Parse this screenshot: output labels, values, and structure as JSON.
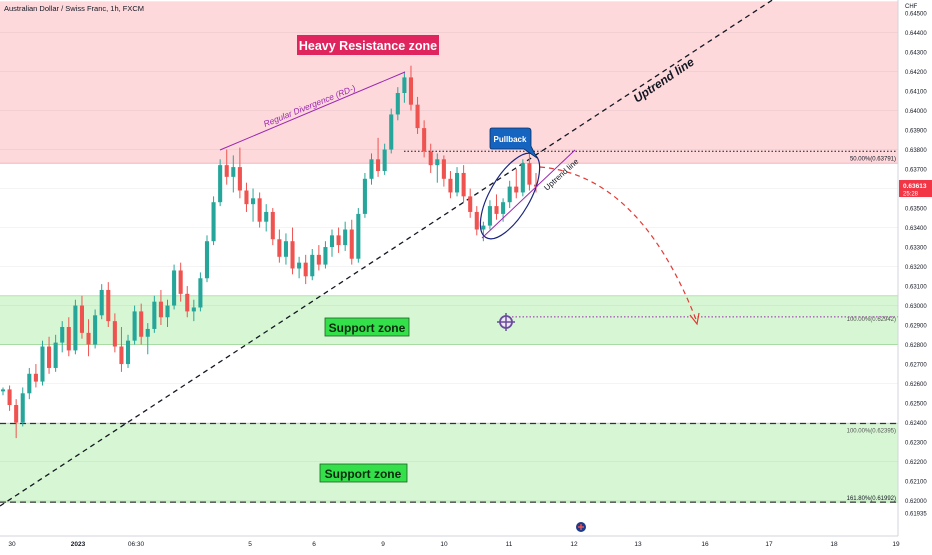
{
  "header": {
    "symbol_title": "Australian Dollar / Swiss Franc, 1h, FXCM"
  },
  "price_axis": {
    "currency": "CHF",
    "ticks": [
      "0.64500",
      "0.64400",
      "0.64300",
      "0.64200",
      "0.64100",
      "0.64000",
      "0.63900",
      "0.63800",
      "0.63700",
      "0.63500",
      "0.63400",
      "0.63300",
      "0.63200",
      "0.63100",
      "0.63000",
      "0.62900",
      "0.62800",
      "0.62700",
      "0.62600",
      "0.62500",
      "0.62400",
      "0.62300",
      "0.62200",
      "0.62100",
      "0.62000",
      "0.61935"
    ],
    "current_price": "0.63613",
    "countdown": "25:28"
  },
  "time_axis": {
    "labels": [
      "30",
      "2023",
      "06:30",
      "5",
      "6",
      "9",
      "10",
      "11",
      "12",
      "13",
      "16",
      "17",
      "18",
      "19"
    ]
  },
  "annotations": {
    "heavy_resistance": "Heavy Resistance zone",
    "support_zone_1": "Support zone",
    "support_zone_2": "Support zone",
    "regular_divergence": "Regular Divergence (RD-)",
    "uptrend_line_main": "Uptrend line",
    "uptrend_line_small": "Uptrend line",
    "pullback": "Pullback",
    "fib_50": "50.00%(0.63791)",
    "fib_100_a": "100.00%(0.62942)",
    "fib_100_b": "100.00%(0.62395)",
    "fib_161": "161.80%(0.61992)"
  },
  "colors": {
    "bull": "#26a69a",
    "bear": "#ef5350",
    "resistance_fill": "#fdd9dc",
    "support_fill": "#d7f7d4",
    "label_red": "#e0245e",
    "label_green": "#33e04a",
    "divergence": "#9c27b0",
    "projection": "#e53935",
    "pullback_blue": "#1565c0"
  },
  "chart_data": {
    "type": "candlestick",
    "title": "Australian Dollar / Swiss Franc, 1h, FXCM",
    "ylabel": "CHF",
    "ylim": [
      0.6192,
      0.6456
    ],
    "current_price": 0.63613,
    "zones": [
      {
        "name": "Heavy Resistance zone",
        "from": 0.6373,
        "to": 0.6456
      },
      {
        "name": "Support zone",
        "from": 0.628,
        "to": 0.6305
      },
      {
        "name": "Support zone",
        "from": 0.61992,
        "to": 0.62395
      }
    ],
    "fib_levels": [
      {
        "label": "50.00%(0.63791)",
        "value": 0.63791
      },
      {
        "label": "100.00%(0.62942)",
        "value": 0.62942
      },
      {
        "label": "100.00%(0.62395)",
        "value": 0.62395
      },
      {
        "label": "161.80%(0.61992)",
        "value": 0.61992
      }
    ],
    "candles": [
      [
        0.6256,
        0.6258,
        0.6254,
        0.6257
      ],
      [
        0.6257,
        0.6259,
        0.6246,
        0.6249
      ],
      [
        0.6249,
        0.6252,
        0.6232,
        0.624
      ],
      [
        0.624,
        0.6258,
        0.6238,
        0.6255
      ],
      [
        0.6255,
        0.6268,
        0.6252,
        0.6265
      ],
      [
        0.6265,
        0.627,
        0.6258,
        0.6261
      ],
      [
        0.6261,
        0.6282,
        0.6259,
        0.6279
      ],
      [
        0.6279,
        0.6284,
        0.6265,
        0.6268
      ],
      [
        0.6268,
        0.6285,
        0.6266,
        0.6281
      ],
      [
        0.6281,
        0.6292,
        0.6276,
        0.6289
      ],
      [
        0.6289,
        0.6294,
        0.6274,
        0.6277
      ],
      [
        0.6277,
        0.6303,
        0.6275,
        0.63
      ],
      [
        0.63,
        0.6305,
        0.6283,
        0.6286
      ],
      [
        0.6286,
        0.6293,
        0.6274,
        0.628
      ],
      [
        0.628,
        0.6298,
        0.6278,
        0.6295
      ],
      [
        0.6295,
        0.6311,
        0.6293,
        0.6308
      ],
      [
        0.6308,
        0.6312,
        0.6289,
        0.6292
      ],
      [
        0.6292,
        0.6296,
        0.6276,
        0.6279
      ],
      [
        0.6279,
        0.6289,
        0.6266,
        0.627
      ],
      [
        0.627,
        0.6285,
        0.6268,
        0.6282
      ],
      [
        0.6282,
        0.63,
        0.628,
        0.6297
      ],
      [
        0.6297,
        0.6301,
        0.628,
        0.6284
      ],
      [
        0.6284,
        0.6291,
        0.6275,
        0.6288
      ],
      [
        0.6288,
        0.6305,
        0.6286,
        0.6302
      ],
      [
        0.6302,
        0.6308,
        0.629,
        0.6294
      ],
      [
        0.6294,
        0.6303,
        0.6289,
        0.63
      ],
      [
        0.63,
        0.6321,
        0.6298,
        0.6318
      ],
      [
        0.6318,
        0.6322,
        0.6302,
        0.6306
      ],
      [
        0.6306,
        0.631,
        0.6294,
        0.6297
      ],
      [
        0.6297,
        0.6303,
        0.6292,
        0.6299
      ],
      [
        0.6299,
        0.6317,
        0.6297,
        0.6314
      ],
      [
        0.6314,
        0.6336,
        0.6312,
        0.6333
      ],
      [
        0.6333,
        0.6356,
        0.6331,
        0.6353
      ],
      [
        0.6353,
        0.6375,
        0.6351,
        0.6372
      ],
      [
        0.6372,
        0.638,
        0.6362,
        0.6366
      ],
      [
        0.6366,
        0.6377,
        0.6358,
        0.6371
      ],
      [
        0.6371,
        0.6381,
        0.6355,
        0.6359
      ],
      [
        0.6359,
        0.6363,
        0.6348,
        0.6352
      ],
      [
        0.6352,
        0.636,
        0.6343,
        0.6355
      ],
      [
        0.6355,
        0.6358,
        0.634,
        0.6343
      ],
      [
        0.6343,
        0.6352,
        0.6338,
        0.6348
      ],
      [
        0.6348,
        0.635,
        0.6331,
        0.6334
      ],
      [
        0.6334,
        0.6339,
        0.6322,
        0.6325
      ],
      [
        0.6325,
        0.6337,
        0.6321,
        0.6333
      ],
      [
        0.6333,
        0.634,
        0.6316,
        0.6319
      ],
      [
        0.6319,
        0.6325,
        0.6314,
        0.6322
      ],
      [
        0.6322,
        0.6326,
        0.6311,
        0.6315
      ],
      [
        0.6315,
        0.6329,
        0.6313,
        0.6326
      ],
      [
        0.6326,
        0.6331,
        0.6318,
        0.6321
      ],
      [
        0.6321,
        0.6333,
        0.6319,
        0.633
      ],
      [
        0.633,
        0.6339,
        0.6325,
        0.6336
      ],
      [
        0.6336,
        0.634,
        0.6327,
        0.6331
      ],
      [
        0.6331,
        0.6343,
        0.6328,
        0.6339
      ],
      [
        0.6339,
        0.6344,
        0.6321,
        0.6324
      ],
      [
        0.6324,
        0.635,
        0.6322,
        0.6347
      ],
      [
        0.6347,
        0.6368,
        0.6345,
        0.6365
      ],
      [
        0.6365,
        0.6378,
        0.6362,
        0.6375
      ],
      [
        0.6375,
        0.6386,
        0.6366,
        0.6369
      ],
      [
        0.6369,
        0.6383,
        0.6367,
        0.638
      ],
      [
        0.638,
        0.6401,
        0.6378,
        0.6398
      ],
      [
        0.6398,
        0.6412,
        0.6395,
        0.6409
      ],
      [
        0.6409,
        0.642,
        0.6404,
        0.6417
      ],
      [
        0.6417,
        0.6423,
        0.64,
        0.6403
      ],
      [
        0.6403,
        0.6407,
        0.6388,
        0.6391
      ],
      [
        0.6391,
        0.6395,
        0.6376,
        0.6379
      ],
      [
        0.6379,
        0.6383,
        0.6368,
        0.6372
      ],
      [
        0.6372,
        0.6378,
        0.6363,
        0.6375
      ],
      [
        0.6375,
        0.6377,
        0.6361,
        0.6365
      ],
      [
        0.6365,
        0.6369,
        0.6355,
        0.6358
      ],
      [
        0.6358,
        0.6371,
        0.6356,
        0.6368
      ],
      [
        0.6368,
        0.6372,
        0.6353,
        0.6356
      ],
      [
        0.6356,
        0.636,
        0.6345,
        0.6348
      ],
      [
        0.6348,
        0.6351,
        0.6336,
        0.6339
      ],
      [
        0.6339,
        0.6343,
        0.6333,
        0.6341
      ],
      [
        0.6341,
        0.6354,
        0.6339,
        0.6351
      ],
      [
        0.6351,
        0.6357,
        0.6344,
        0.6347
      ],
      [
        0.6347,
        0.6355,
        0.6343,
        0.6353
      ],
      [
        0.6353,
        0.6364,
        0.635,
        0.6361
      ],
      [
        0.6361,
        0.637,
        0.6355,
        0.6358
      ],
      [
        0.6358,
        0.6375,
        0.6356,
        0.6373
      ],
      [
        0.6373,
        0.6378,
        0.6359,
        0.6362
      ],
      [
        0.6362,
        0.6368,
        0.6358,
        0.6361
      ]
    ]
  }
}
